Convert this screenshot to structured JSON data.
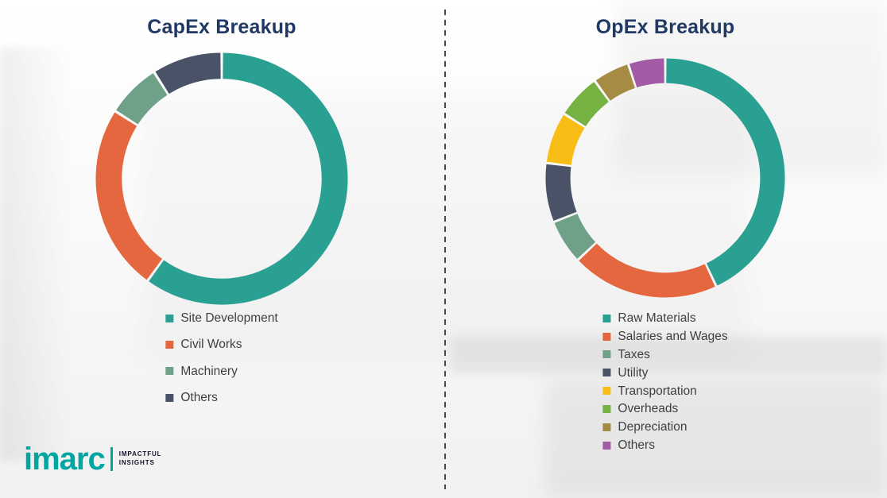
{
  "page": {
    "background_color": "#f7f7f7",
    "divider_style": "vertical-dashed-line"
  },
  "chart_data": [
    {
      "type": "donut",
      "title": "CapEx Breakup",
      "title_color": "#1f3864",
      "categories": [
        "Site Development",
        "Civil Works",
        "Machinery",
        "Others"
      ],
      "values": [
        60,
        24,
        7,
        9
      ],
      "colors": [
        "#2aa092",
        "#e5673f",
        "#6fa188",
        "#4a5268"
      ],
      "start_angle_deg": 0,
      "direction": "clockwise",
      "legend_position": "bottom",
      "values_unit": "percent-estimated-no-data-labels-shown"
    },
    {
      "type": "donut",
      "title": "OpEx Breakup",
      "title_color": "#1f3864",
      "categories": [
        "Raw Materials",
        "Salaries and Wages",
        "Taxes",
        "Utility",
        "Transportation",
        "Overheads",
        "Depreciation",
        "Others"
      ],
      "values": [
        43,
        20,
        6,
        8,
        7,
        6,
        5,
        5
      ],
      "colors": [
        "#2aa092",
        "#e5673f",
        "#6fa188",
        "#4a5268",
        "#f8be15",
        "#75b242",
        "#a68b44",
        "#a35ba5"
      ],
      "start_angle_deg": 0,
      "direction": "clockwise",
      "legend_position": "bottom",
      "values_unit": "percent-estimated-no-data-labels-shown"
    }
  ],
  "logo": {
    "brand": "imarc",
    "brand_color": "#00a7a0",
    "tagline_line1": "IMPACTFUL",
    "tagline_line2": "INSIGHTS"
  }
}
